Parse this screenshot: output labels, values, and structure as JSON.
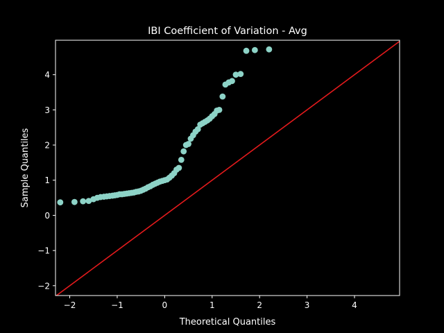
{
  "chart_data": {
    "type": "scatter",
    "title": "IBI Coefficient of Variation - Avg",
    "xlabel": "Theoretical Quantiles",
    "ylabel": "Sample Quantiles",
    "xlim": [
      -2.3,
      4.95
    ],
    "ylim": [
      -2.28,
      4.98
    ],
    "xticks": [
      -2,
      -1,
      0,
      1,
      2,
      3,
      4
    ],
    "yticks": [
      -2,
      -1,
      0,
      1,
      2,
      3,
      4
    ],
    "grid": false,
    "background": "#000000",
    "foreground": "#ffffff",
    "series": [
      {
        "kind": "points",
        "color": "#8dd3c7",
        "x": [
          -2.2,
          -1.9,
          -1.72,
          -1.6,
          -1.5,
          -1.42,
          -1.35,
          -1.28,
          -1.22,
          -1.16,
          -1.1,
          -1.05,
          -1.0,
          -0.95,
          -0.9,
          -0.85,
          -0.8,
          -0.75,
          -0.7,
          -0.65,
          -0.6,
          -0.55,
          -0.5,
          -0.45,
          -0.4,
          -0.35,
          -0.3,
          -0.25,
          -0.2,
          -0.15,
          -0.1,
          -0.05,
          0.0,
          0.05,
          0.1,
          0.15,
          0.2,
          0.25,
          0.3,
          0.35,
          0.4,
          0.45,
          0.5,
          0.55,
          0.6,
          0.65,
          0.7,
          0.75,
          0.8,
          0.85,
          0.9,
          0.95,
          1.0,
          1.05,
          1.1,
          1.15,
          1.22,
          1.28,
          1.35,
          1.42,
          1.5,
          1.6,
          1.72,
          1.9,
          2.2
        ],
        "y": [
          0.37,
          0.38,
          0.4,
          0.41,
          0.46,
          0.5,
          0.52,
          0.53,
          0.54,
          0.55,
          0.56,
          0.57,
          0.58,
          0.6,
          0.6,
          0.61,
          0.62,
          0.63,
          0.64,
          0.65,
          0.67,
          0.68,
          0.7,
          0.73,
          0.76,
          0.8,
          0.83,
          0.87,
          0.9,
          0.93,
          0.96,
          0.98,
          1.0,
          1.02,
          1.07,
          1.13,
          1.2,
          1.3,
          1.35,
          1.58,
          1.82,
          2.0,
          2.03,
          2.18,
          2.28,
          2.38,
          2.45,
          2.58,
          2.62,
          2.66,
          2.7,
          2.75,
          2.82,
          2.88,
          2.98,
          3.0,
          3.38,
          3.72,
          3.78,
          3.82,
          4.0,
          4.02,
          4.68,
          4.7,
          4.72
        ]
      },
      {
        "kind": "reference-line",
        "color": "#e41a1c",
        "x": [
          -2.3,
          4.95
        ],
        "y": [
          -2.3,
          4.95
        ]
      }
    ]
  }
}
